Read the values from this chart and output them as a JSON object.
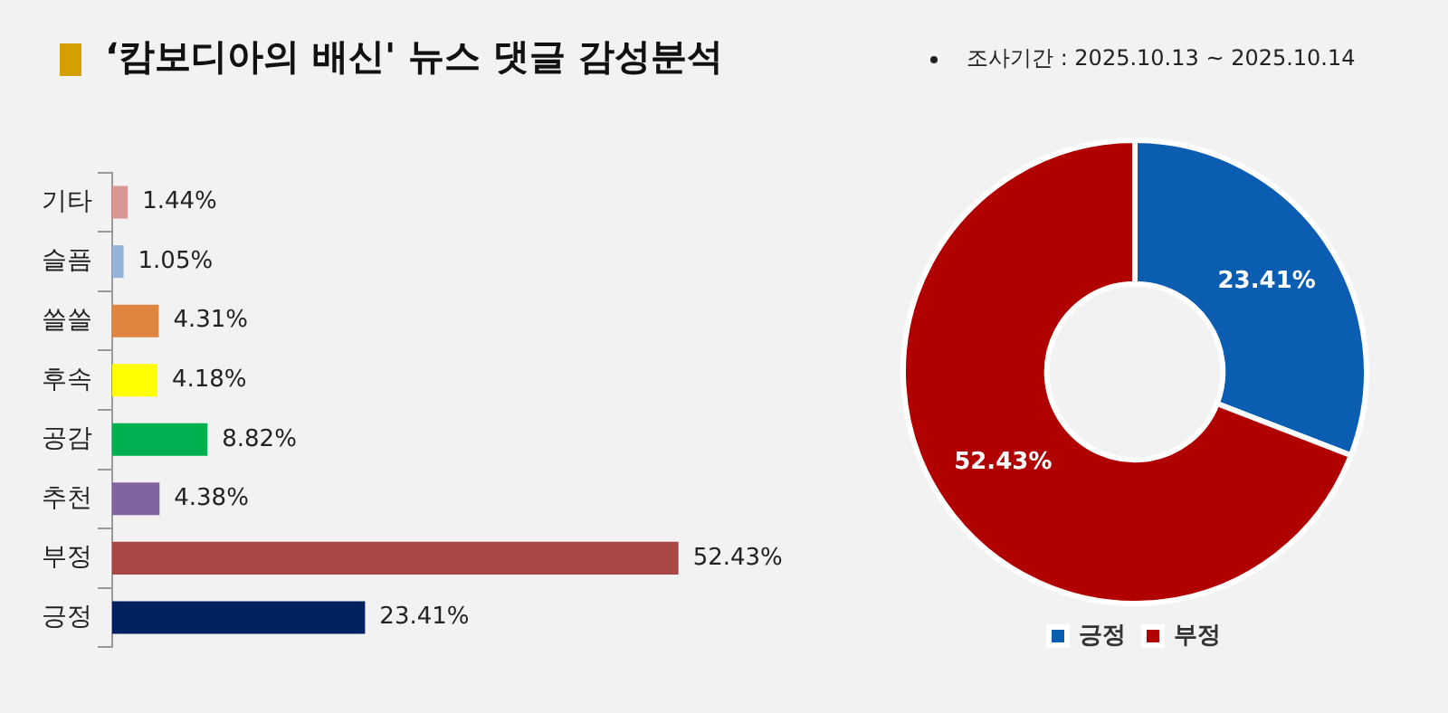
{
  "chart_data": [
    {
      "type": "bar",
      "title": "‘캄보디아의 배신' 뉴스 댓글 감성분석",
      "orientation": "horizontal",
      "categories": [
        "기타",
        "슬픔",
        "쓸쓸",
        "후속",
        "공감",
        "추천",
        "부정",
        "긍정"
      ],
      "values": [
        1.44,
        1.05,
        4.31,
        4.18,
        8.82,
        4.38,
        52.43,
        23.41
      ],
      "value_labels": [
        "1.44%",
        "1.05%",
        "4.31%",
        "4.18%",
        "8.82%",
        "4.38%",
        "52.43%",
        "23.41%"
      ],
      "colors": [
        "#d99694",
        "#95b3d7",
        "#e0853f",
        "#ffff00",
        "#00b050",
        "#8064a2",
        "#a94646",
        "#002060"
      ],
      "grid": false,
      "legend": false
    },
    {
      "type": "donut",
      "subtitle": "조사기간 : 2025.10.13 ~ 2025.10.14",
      "categories": [
        "긍정",
        "부정"
      ],
      "values": [
        23.41,
        52.43
      ],
      "value_labels": [
        "23.41%",
        "52.43%"
      ],
      "colors": [
        "#0a5db0",
        "#b00000"
      ],
      "legend": "bottom"
    }
  ]
}
